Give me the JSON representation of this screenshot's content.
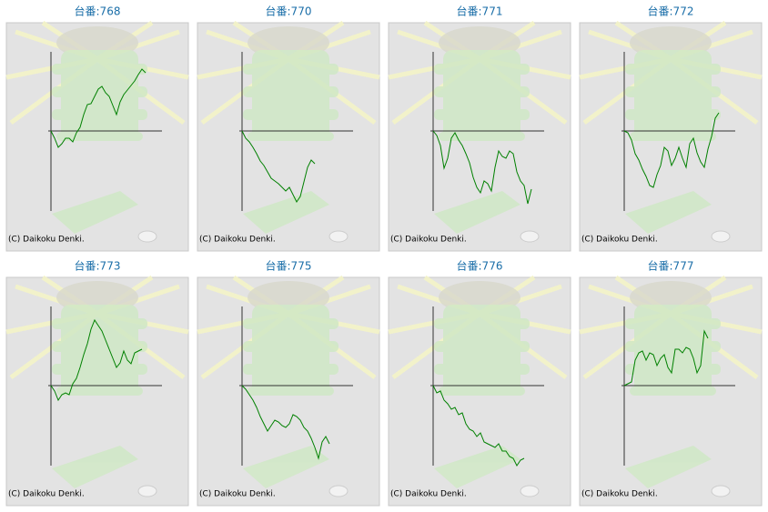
{
  "chart_data": [
    {
      "type": "line",
      "title": "台番:768",
      "credit": "(C) Daikoku Denki.",
      "color": "#008000",
      "xlim": [
        0,
        30
      ],
      "ylim": [
        -88,
        87
      ],
      "values": [
        0,
        -8,
        -18,
        -14,
        -8,
        -8,
        -12,
        -2,
        4,
        18,
        29,
        30,
        38,
        46,
        49,
        42,
        38,
        28,
        18,
        32,
        40,
        45,
        50,
        55,
        62,
        68,
        64
      ]
    },
    {
      "type": "line",
      "title": "台番:770",
      "credit": "(C) Daikoku Denki.",
      "color": "#008000",
      "xlim": [
        0,
        30
      ],
      "ylim": [
        -88,
        87
      ],
      "values": [
        0,
        -8,
        -12,
        -18,
        -25,
        -33,
        -38,
        -45,
        -52,
        -55,
        -58,
        -62,
        -66,
        -62,
        -70,
        -78,
        -72,
        -56,
        -40,
        -32,
        -36
      ]
    },
    {
      "type": "line",
      "title": "台番:771",
      "credit": "(C) Daikoku Denki.",
      "color": "#008000",
      "xlim": [
        0,
        30
      ],
      "ylim": [
        -88,
        87
      ],
      "values": [
        0,
        -5,
        -16,
        -41,
        -30,
        -8,
        -2,
        -10,
        -16,
        -25,
        -35,
        -51,
        -62,
        -68,
        -55,
        -58,
        -66,
        -40,
        -22,
        -28,
        -30,
        -22,
        -25,
        -45,
        -55,
        -60,
        -80,
        -64
      ]
    },
    {
      "type": "line",
      "title": "台番:772",
      "credit": "(C) Daikoku Denki.",
      "color": "#008000",
      "xlim": [
        0,
        30
      ],
      "ylim": [
        -88,
        87
      ],
      "values": [
        0,
        -2,
        -10,
        -25,
        -32,
        -42,
        -50,
        -60,
        -62,
        -48,
        -38,
        -18,
        -22,
        -38,
        -30,
        -18,
        -30,
        -40,
        -14,
        -8,
        -24,
        -34,
        -40,
        -20,
        -6,
        14,
        20
      ]
    },
    {
      "type": "line",
      "title": "台番:773",
      "credit": "(C) Daikoku Denki.",
      "color": "#008000",
      "xlim": [
        0,
        30
      ],
      "ylim": [
        -88,
        87
      ],
      "values": [
        0,
        -6,
        -16,
        -10,
        -8,
        -10,
        2,
        8,
        20,
        34,
        46,
        62,
        72,
        66,
        60,
        50,
        40,
        30,
        20,
        25,
        38,
        28,
        24,
        36,
        38,
        40
      ]
    },
    {
      "type": "line",
      "title": "台番:775",
      "credit": "(C) Daikoku Denki.",
      "color": "#008000",
      "xlim": [
        0,
        30
      ],
      "ylim": [
        -88,
        87
      ],
      "values": [
        0,
        -4,
        -10,
        -16,
        -24,
        -34,
        -42,
        -50,
        -44,
        -38,
        -40,
        -44,
        -46,
        -42,
        -32,
        -34,
        -38,
        -46,
        -50,
        -58,
        -68,
        -80,
        -62,
        -56,
        -64
      ]
    },
    {
      "type": "line",
      "title": "台番:776",
      "credit": "(C) Daikoku Denki.",
      "color": "#008000",
      "xlim": [
        0,
        30
      ],
      "ylim": [
        -88,
        87
      ],
      "values": [
        0,
        -8,
        -6,
        -16,
        -20,
        -26,
        -24,
        -32,
        -30,
        -42,
        -48,
        -50,
        -56,
        -52,
        -62,
        -64,
        -66,
        -68,
        -64,
        -72,
        -72,
        -78,
        -80,
        -88,
        -82,
        -80
      ]
    },
    {
      "type": "line",
      "title": "台番:777",
      "credit": "(C) Daikoku Denki.",
      "color": "#008000",
      "xlim": [
        0,
        30
      ],
      "ylim": [
        -88,
        87
      ],
      "values": [
        0,
        2,
        4,
        28,
        36,
        38,
        28,
        36,
        34,
        22,
        30,
        34,
        20,
        14,
        40,
        40,
        36,
        42,
        40,
        30,
        14,
        22,
        60,
        52
      ]
    }
  ]
}
